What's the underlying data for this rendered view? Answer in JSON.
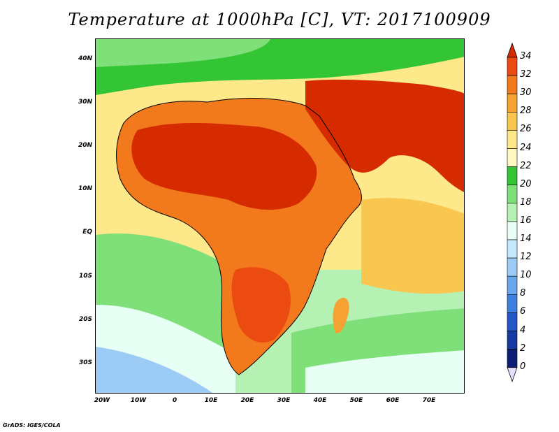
{
  "title": "Temperature at 1000hPa [C], VT: 2017100909",
  "credit": "GrADS: IGES/COLA",
  "lat_labels": [
    "40N",
    "30N",
    "20N",
    "10N",
    "EQ",
    "10S",
    "20S",
    "30S"
  ],
  "lon_labels": [
    "20W",
    "10W",
    "0",
    "10E",
    "20E",
    "30E",
    "40E",
    "50E",
    "60E",
    "70E"
  ],
  "colorbar": {
    "labels": [
      "34",
      "32",
      "30",
      "28",
      "26",
      "24",
      "22",
      "20",
      "18",
      "16",
      "14",
      "12",
      "10",
      "8",
      "6",
      "4",
      "2",
      "0"
    ],
    "colors": [
      "#d62b00",
      "#eb4a11",
      "#f27a1c",
      "#f5a232",
      "#f9c64f",
      "#fde98a",
      "#fff8c2",
      "#33c534",
      "#7fe07a",
      "#b6f1b4",
      "#e8fff6",
      "#c5e8ff",
      "#9ccbf5",
      "#6aa6ec",
      "#3f7fe0",
      "#2356c8",
      "#143aa2",
      "#0a1f74",
      "#e6e0ff"
    ]
  },
  "map": {
    "ocean_color": "#fde98a",
    "land_hot": "#d62b00",
    "land_warm": "#f27a1c",
    "cool_green": "#33c534",
    "cold_blue": "#9ccbf5"
  }
}
